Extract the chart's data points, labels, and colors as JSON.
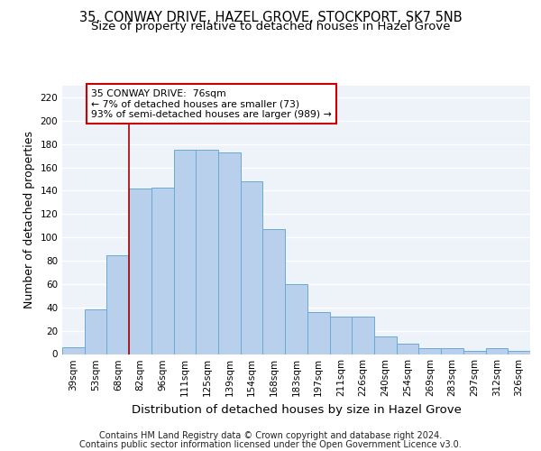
{
  "title_line1": "35, CONWAY DRIVE, HAZEL GROVE, STOCKPORT, SK7 5NB",
  "title_line2": "Size of property relative to detached houses in Hazel Grove",
  "xlabel": "Distribution of detached houses by size in Hazel Grove",
  "ylabel": "Number of detached properties",
  "footnote1": "Contains HM Land Registry data © Crown copyright and database right 2024.",
  "footnote2": "Contains public sector information licensed under the Open Government Licence v3.0.",
  "categories": [
    "39sqm",
    "53sqm",
    "68sqm",
    "82sqm",
    "96sqm",
    "111sqm",
    "125sqm",
    "139sqm",
    "154sqm",
    "168sqm",
    "183sqm",
    "197sqm",
    "211sqm",
    "226sqm",
    "240sqm",
    "254sqm",
    "269sqm",
    "283sqm",
    "297sqm",
    "312sqm",
    "326sqm"
  ],
  "values": [
    6,
    38,
    85,
    142,
    143,
    175,
    175,
    173,
    148,
    107,
    60,
    36,
    32,
    32,
    15,
    9,
    5,
    5,
    3,
    5,
    3
  ],
  "bar_color": "#b8d0eb",
  "bar_edge_color": "#6aaad4",
  "vline_index": 2.5,
  "vline_color": "#aa0000",
  "annotation_text_line1": "35 CONWAY DRIVE:  76sqm",
  "annotation_text_line2": "← 7% of detached houses are smaller (73)",
  "annotation_text_line3": "93% of semi-detached houses are larger (989) →",
  "annotation_box_color": "#ffffff",
  "annotation_box_edge": "#cc0000",
  "ylim": [
    0,
    230
  ],
  "yticks": [
    0,
    20,
    40,
    60,
    80,
    100,
    120,
    140,
    160,
    180,
    200,
    220
  ],
  "bg_color": "#eef2f9",
  "grid_color": "#ffffff",
  "title_fontsize": 10.5,
  "subtitle_fontsize": 9.5,
  "axis_label_fontsize": 9,
  "tick_fontsize": 7.5,
  "footnote_fontsize": 7
}
